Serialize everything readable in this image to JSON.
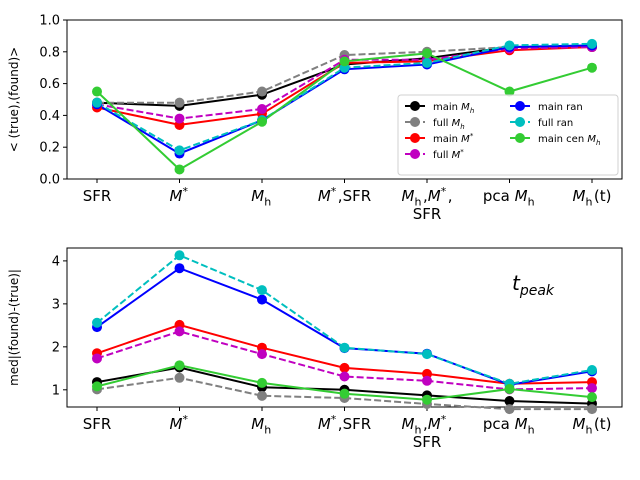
{
  "chart_data": [
    {
      "type": "line",
      "categories": [
        {
          "text": "SFR"
        },
        {
          "text": "M",
          "sup": "*",
          "italic": true
        },
        {
          "text": "M",
          "sub": "h",
          "italic": true
        },
        {
          "text": "M",
          "sup": "*",
          "italic": true,
          "suffix": ",SFR"
        },
        {
          "text": "M",
          "sub": "h",
          "italic": true,
          "suffix": ",",
          "text2": "M",
          "sup2": "*",
          "suffix2": ",",
          "line2": "SFR"
        },
        {
          "text": "pca ",
          "text2": "M",
          "sub2": "h"
        },
        {
          "text": "M",
          "sub": "h",
          "italic": true,
          "suffix": "(t)"
        }
      ],
      "ylabel": "< (true),(found)>",
      "ylim": [
        0.0,
        1.0
      ],
      "yticks": [
        "0.0",
        "0.2",
        "0.4",
        "0.6",
        "0.8",
        "1.0"
      ],
      "annotation": "",
      "series": [
        {
          "name": "main M_h",
          "color": "#000000",
          "dash": false,
          "values": [
            0.48,
            0.46,
            0.53,
            0.72,
            0.76,
            0.83,
            0.83
          ]
        },
        {
          "name": "full M_h",
          "color": "#808080",
          "dash": true,
          "values": [
            0.48,
            0.48,
            0.55,
            0.78,
            0.8,
            0.83,
            0.83
          ]
        },
        {
          "name": "main M*",
          "color": "#ff0000",
          "dash": false,
          "values": [
            0.45,
            0.34,
            0.41,
            0.73,
            0.74,
            0.81,
            0.83
          ]
        },
        {
          "name": "full M*",
          "color": "#c000c0",
          "dash": true,
          "values": [
            0.47,
            0.38,
            0.44,
            0.75,
            0.75,
            0.82,
            0.83
          ]
        },
        {
          "name": "main ran",
          "color": "#0000ff",
          "dash": false,
          "values": [
            0.47,
            0.16,
            0.37,
            0.69,
            0.72,
            0.83,
            0.84
          ]
        },
        {
          "name": "full ran",
          "color": "#00bfbf",
          "dash": true,
          "values": [
            0.48,
            0.18,
            0.37,
            0.7,
            0.73,
            0.84,
            0.85
          ]
        },
        {
          "name": "main cen M_h",
          "color": "#33cc33",
          "dash": false,
          "values": [
            0.55,
            0.06,
            0.36,
            0.74,
            0.79,
            0.55,
            0.7
          ]
        }
      ],
      "legend": {
        "placement": "lower-right",
        "entries": [
          {
            "text": "main ",
            "mtext": "M",
            "msub": "h"
          },
          {
            "text": "full ",
            "mtext": "M",
            "msub": "h"
          },
          {
            "text": "main ",
            "mtext": "M",
            "msup": "*"
          },
          {
            "text": "full ",
            "mtext": "M",
            "msup": "*"
          },
          {
            "text": "main ran"
          },
          {
            "text": "full ran"
          },
          {
            "text": "main cen ",
            "mtext": "M",
            "msub": "h"
          }
        ]
      }
    },
    {
      "type": "line",
      "categories": [
        {
          "text": "SFR"
        },
        {
          "text": "M",
          "sup": "*",
          "italic": true
        },
        {
          "text": "M",
          "sub": "h",
          "italic": true
        },
        {
          "text": "M",
          "sup": "*",
          "italic": true,
          "suffix": ",SFR"
        },
        {
          "text": "M",
          "sub": "h",
          "italic": true,
          "suffix": ",",
          "text2": "M",
          "sup2": "*",
          "suffix2": ",",
          "line2": "SFR"
        },
        {
          "text": "pca ",
          "text2": "M",
          "sub2": "h"
        },
        {
          "text": "M",
          "sub": "h",
          "italic": true,
          "suffix": "(t)"
        }
      ],
      "ylabel": "med|(found)-(true)|",
      "ylim": [
        0.6,
        4.3
      ],
      "yticks": [
        "1",
        "2",
        "3",
        "4"
      ],
      "annotation": {
        "text": "t",
        "sub": "peak"
      },
      "series": [
        {
          "name": "main M_h",
          "color": "#000000",
          "dash": false,
          "values": [
            1.18,
            1.52,
            1.06,
            1.0,
            0.87,
            0.74,
            0.68
          ]
        },
        {
          "name": "full M_h",
          "color": "#808080",
          "dash": true,
          "values": [
            1.01,
            1.28,
            0.86,
            0.81,
            0.67,
            0.55,
            0.55
          ]
        },
        {
          "name": "main M*",
          "color": "#ff0000",
          "dash": false,
          "values": [
            1.85,
            2.51,
            1.98,
            1.51,
            1.37,
            1.14,
            1.18
          ]
        },
        {
          "name": "full M*",
          "color": "#c000c0",
          "dash": true,
          "values": [
            1.73,
            2.36,
            1.83,
            1.31,
            1.21,
            1.01,
            1.04
          ]
        },
        {
          "name": "main ran",
          "color": "#0000ff",
          "dash": false,
          "values": [
            2.46,
            3.83,
            3.1,
            1.97,
            1.84,
            1.12,
            1.43
          ]
        },
        {
          "name": "full ran",
          "color": "#00bfbf",
          "dash": true,
          "values": [
            2.56,
            4.13,
            3.32,
            1.98,
            1.83,
            1.14,
            1.46
          ]
        },
        {
          "name": "main cen M_h",
          "color": "#33cc33",
          "dash": false,
          "values": [
            1.08,
            1.57,
            1.16,
            0.91,
            0.77,
            1.02,
            0.83
          ]
        }
      ]
    }
  ]
}
